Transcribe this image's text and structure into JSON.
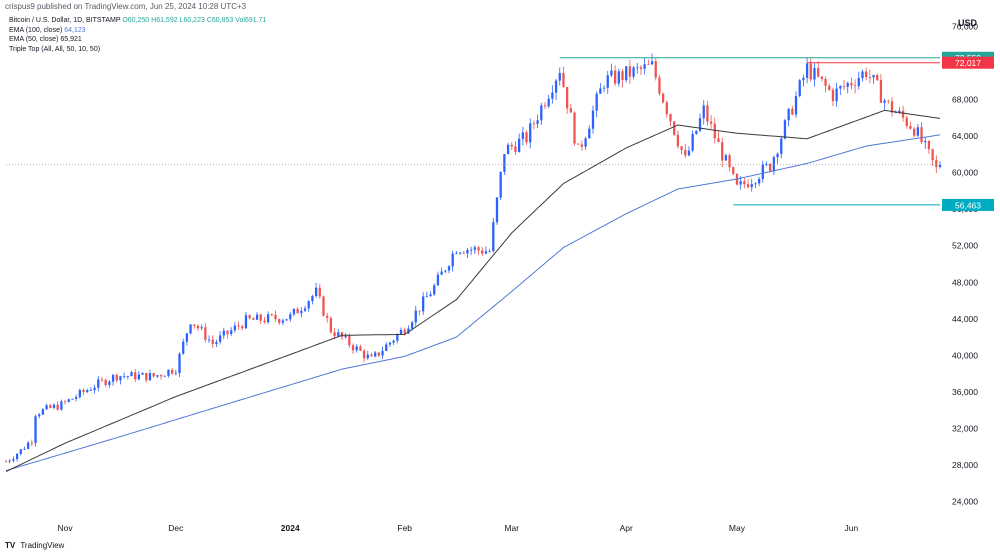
{
  "header": {
    "publisher_line": "crispus9 published on TradingView.com, Jun 25, 2024 10:28 UTC+3",
    "symbol": "Bitcoin / U.S. Dollar, 1D, BITSTAMP",
    "ohlc": "O60,250  H61,592  L60,223  C60,853  Vol691.71",
    "ema100": "EMA (100, close)",
    "ema100_value": "64,123",
    "ema50": "EMA (50, close)",
    "ema50_value": "65,921",
    "pattern": "Triple Top (All, All, 50, 10, 50)"
  },
  "currency": "USD",
  "footer": {
    "brand_logo": "TV",
    "brand": "TradingView"
  },
  "colors": {
    "up": "#26a69a",
    "down": "#ef5350",
    "up_candle": "#2962ff",
    "ema100": "#4f79d6",
    "ema50": "#3a3a3a",
    "resistance": "#26a69a",
    "resistance2": "#f23645",
    "support": "#00acc1"
  },
  "chart_data": {
    "type": "candlestick",
    "title": "Bitcoin / U.S. Dollar, 1D, BITSTAMP",
    "ylabel": "USD",
    "ylim": [
      22000,
      78000
    ],
    "y_ticks": [
      "24,000",
      "28,000",
      "32,000",
      "36,000",
      "40,000",
      "44,000",
      "48,000",
      "52,000",
      "56,000",
      "60,000",
      "64,000",
      "68,000",
      "72,000",
      "76,000"
    ],
    "x_ticks": [
      {
        "label": "Nov",
        "day": "2023-11-01"
      },
      {
        "label": "Dec",
        "day": "2023-12-01"
      },
      {
        "label": "2024",
        "day": "2024-01-01"
      },
      {
        "label": "Feb",
        "day": "2024-02-01"
      },
      {
        "label": "Mar",
        "day": "2024-03-01"
      },
      {
        "label": "Apr",
        "day": "2024-04-01"
      },
      {
        "label": "May",
        "day": "2024-05-01"
      },
      {
        "label": "Jun",
        "day": "2024-06-01"
      }
    ],
    "date_range": [
      "2023-10-16",
      "2024-06-25"
    ],
    "price_close_key": [
      {
        "date": "2023-10-16",
        "close": 28400
      },
      {
        "date": "2023-10-20",
        "close": 29600
      },
      {
        "date": "2023-10-23",
        "close": 30800
      },
      {
        "date": "2023-10-24",
        "close": 33700
      },
      {
        "date": "2023-10-31",
        "close": 34600
      },
      {
        "date": "2023-11-09",
        "close": 36700
      },
      {
        "date": "2023-11-15",
        "close": 37800
      },
      {
        "date": "2023-11-25",
        "close": 37700
      },
      {
        "date": "2023-12-01",
        "close": 38600
      },
      {
        "date": "2023-12-05",
        "close": 43900
      },
      {
        "date": "2023-12-11",
        "close": 41300
      },
      {
        "date": "2023-12-20",
        "close": 43800
      },
      {
        "date": "2024-01-01",
        "close": 44200
      },
      {
        "date": "2024-01-08",
        "close": 46900
      },
      {
        "date": "2024-01-12",
        "close": 42800
      },
      {
        "date": "2024-01-23",
        "close": 39500
      },
      {
        "date": "2024-02-01",
        "close": 43000
      },
      {
        "date": "2024-02-09",
        "close": 47500
      },
      {
        "date": "2024-02-15",
        "close": 51800
      },
      {
        "date": "2024-02-24",
        "close": 51400
      },
      {
        "date": "2024-02-28",
        "close": 62400
      },
      {
        "date": "2024-03-05",
        "close": 63800
      },
      {
        "date": "2024-03-14",
        "close": 71400
      },
      {
        "date": "2024-03-19",
        "close": 62200
      },
      {
        "date": "2024-03-26",
        "close": 70000
      },
      {
        "date": "2024-04-08",
        "close": 71600
      },
      {
        "date": "2024-04-17",
        "close": 61300
      },
      {
        "date": "2024-04-22",
        "close": 66800
      },
      {
        "date": "2024-05-01",
        "close": 58200
      },
      {
        "date": "2024-05-10",
        "close": 60800
      },
      {
        "date": "2024-05-20",
        "close": 71400
      },
      {
        "date": "2024-05-27",
        "close": 68500
      },
      {
        "date": "2024-06-05",
        "close": 71100
      },
      {
        "date": "2024-06-11",
        "close": 67300
      },
      {
        "date": "2024-06-18",
        "close": 64900
      },
      {
        "date": "2024-06-24",
        "close": 60300
      },
      {
        "date": "2024-06-25",
        "close": 60853
      }
    ],
    "ema100_key": [
      {
        "date": "2023-10-16",
        "value": 27400
      },
      {
        "date": "2023-11-15",
        "value": 31000
      },
      {
        "date": "2023-12-15",
        "value": 34700
      },
      {
        "date": "2024-01-15",
        "value": 38500
      },
      {
        "date": "2024-02-01",
        "value": 39900
      },
      {
        "date": "2024-02-15",
        "value": 42000
      },
      {
        "date": "2024-03-01",
        "value": 47000
      },
      {
        "date": "2024-03-15",
        "value": 51800
      },
      {
        "date": "2024-04-01",
        "value": 55500
      },
      {
        "date": "2024-04-15",
        "value": 58200
      },
      {
        "date": "2024-05-01",
        "value": 59300
      },
      {
        "date": "2024-05-20",
        "value": 61000
      },
      {
        "date": "2024-06-05",
        "value": 62900
      },
      {
        "date": "2024-06-25",
        "value": 64123
      }
    ],
    "ema50_key": [
      {
        "date": "2023-10-16",
        "value": 27300
      },
      {
        "date": "2023-11-01",
        "value": 30400
      },
      {
        "date": "2023-12-01",
        "value": 35500
      },
      {
        "date": "2024-01-01",
        "value": 40100
      },
      {
        "date": "2024-01-15",
        "value": 42200
      },
      {
        "date": "2024-02-01",
        "value": 42300
      },
      {
        "date": "2024-02-15",
        "value": 46100
      },
      {
        "date": "2024-03-01",
        "value": 53400
      },
      {
        "date": "2024-03-15",
        "value": 58800
      },
      {
        "date": "2024-04-01",
        "value": 62700
      },
      {
        "date": "2024-04-15",
        "value": 65200
      },
      {
        "date": "2024-05-01",
        "value": 64300
      },
      {
        "date": "2024-05-20",
        "value": 63700
      },
      {
        "date": "2024-06-10",
        "value": 66800
      },
      {
        "date": "2024-06-25",
        "value": 65921
      }
    ],
    "levels": [
      {
        "name": "resistance",
        "value": 72559,
        "label": "72,559",
        "from": "2024-03-14",
        "to": "2024-06-25"
      },
      {
        "name": "resistance-2",
        "value": 72017,
        "label": "72,017",
        "from": "2024-05-20",
        "to": "2024-06-25"
      },
      {
        "name": "support",
        "value": 56463,
        "label": "56,463",
        "from": "2024-04-30",
        "to": "2024-06-25"
      }
    ],
    "last_price": 60853
  }
}
